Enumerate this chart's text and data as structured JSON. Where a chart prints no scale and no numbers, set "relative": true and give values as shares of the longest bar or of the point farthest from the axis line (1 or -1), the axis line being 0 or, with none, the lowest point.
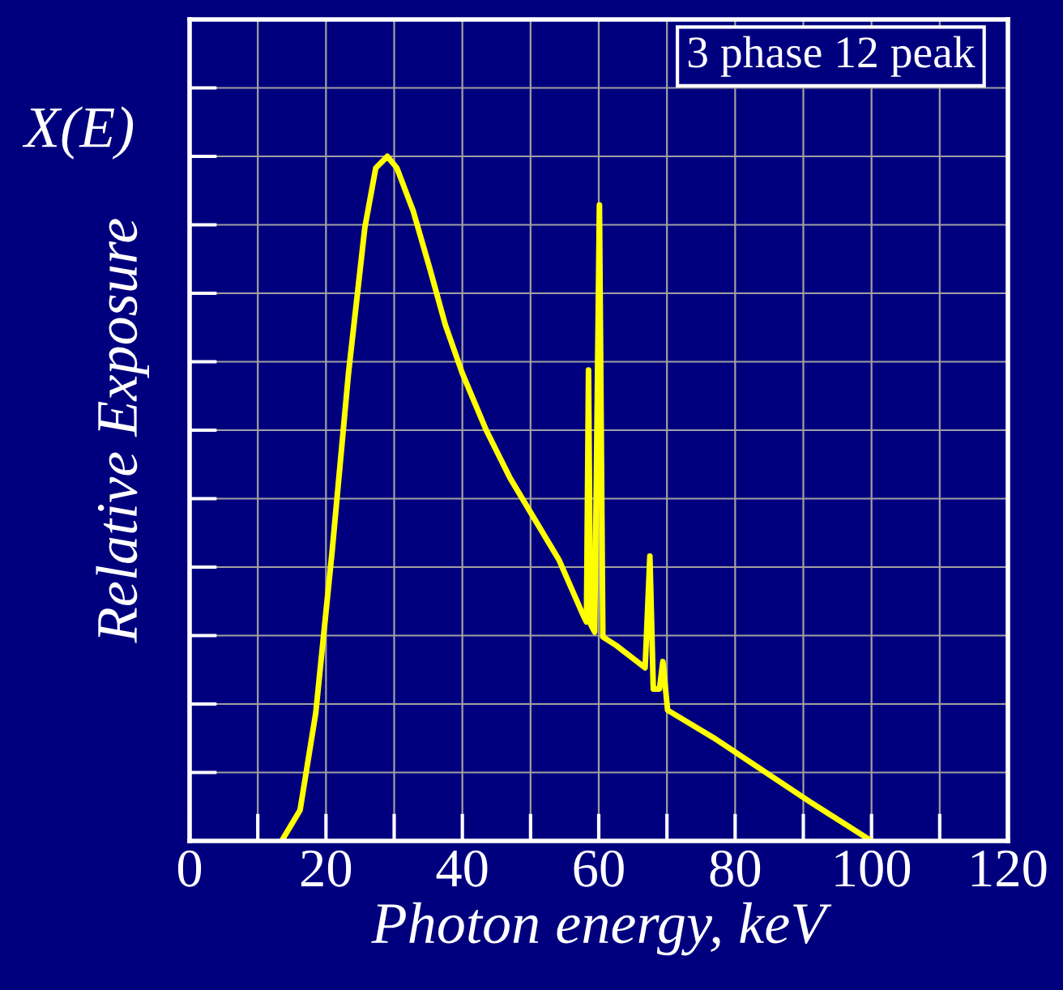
{
  "chart_data": {
    "type": "line",
    "relative": true,
    "xlabel": "Photon energy, keV",
    "ylabel": "Relative Exposure",
    "annotations": [
      "X(E)",
      "3 phase 12 peak"
    ],
    "xlim": [
      0,
      120
    ],
    "xticks": [
      0,
      {
        "value": 10,
        "label": null
      },
      20,
      {
        "value": 30,
        "label": null
      },
      40,
      {
        "value": 50,
        "label": null
      },
      60,
      {
        "value": 70,
        "label": null
      },
      80,
      {
        "value": 90,
        "label": null
      },
      100,
      {
        "value": 110,
        "label": null
      },
      120
    ],
    "grid": true,
    "marker": "none",
    "line_style": "solid",
    "series": [
      {
        "color": "#ffff00",
        "x": [
          13.5,
          16.2,
          18.5,
          20.9,
          23.3,
          25.7,
          27.3,
          29,
          30.4,
          32.8,
          35.2,
          37.5,
          40,
          43.5,
          47,
          50.6,
          54.2,
          57.7,
          58.2,
          58.5,
          58.8,
          59.4,
          60.1,
          60.6,
          62.5,
          66.8,
          67.5,
          68,
          68.9,
          69.4,
          70.1,
          76.8,
          83.9,
          91,
          100
        ],
        "values": [
          0,
          0.045,
          0.187,
          0.423,
          0.683,
          0.896,
          0.983,
          1,
          0.983,
          0.92,
          0.837,
          0.754,
          0.683,
          0.6,
          0.53,
          0.47,
          0.41,
          0.33,
          0.32,
          0.688,
          0.317,
          0.305,
          0.929,
          0.298,
          0.286,
          0.253,
          0.416,
          0.222,
          0.222,
          0.262,
          0.191,
          0.151,
          0.104,
          0.057,
          0
        ]
      }
    ]
  }
}
